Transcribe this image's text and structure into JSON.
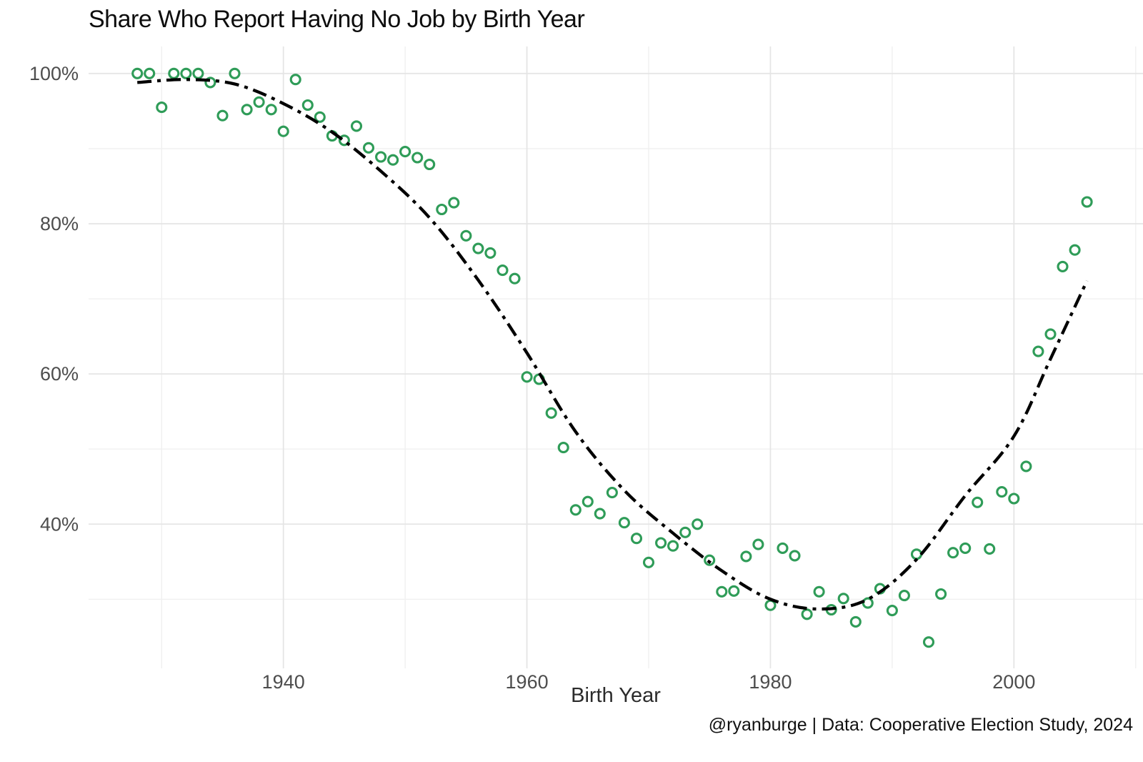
{
  "chart_data": {
    "type": "scatter",
    "title": "Share Who Report Having No Job by Birth Year",
    "xlabel": "Birth Year",
    "ylabel": "",
    "caption": "@ryanburge | Data: Cooperative Election Study, 2024",
    "legend": "none",
    "grid": "on",
    "xlim": [
      1924.0,
      2010.6
    ],
    "ylim": [
      20.8,
      103.6
    ],
    "x_ticks": [
      1940,
      1960,
      1980,
      2000
    ],
    "x_tick_labels": [
      "1940",
      "1960",
      "1980",
      "2000"
    ],
    "x_minor_ticks": [
      1930,
      1950,
      1970,
      1990,
      2010
    ],
    "y_ticks": [
      40,
      60,
      80,
      100
    ],
    "y_tick_labels": [
      "40%",
      "60%",
      "80%",
      "100%"
    ],
    "y_minor_ticks": [
      30,
      50,
      70,
      90
    ],
    "series": [
      {
        "name": "share-no-job",
        "marker": "open-circle",
        "x": [
          1928,
          1929,
          1930,
          1931,
          1932,
          1933,
          1934,
          1935,
          1936,
          1937,
          1938,
          1939,
          1940,
          1941,
          1942,
          1943,
          1944,
          1945,
          1946,
          1947,
          1948,
          1949,
          1950,
          1951,
          1952,
          1953,
          1954,
          1955,
          1956,
          1957,
          1958,
          1959,
          1960,
          1961,
          1962,
          1963,
          1964,
          1965,
          1966,
          1967,
          1968,
          1969,
          1970,
          1971,
          1972,
          1973,
          1974,
          1975,
          1976,
          1977,
          1978,
          1979,
          1980,
          1981,
          1982,
          1983,
          1984,
          1985,
          1986,
          1987,
          1988,
          1989,
          1990,
          1991,
          1992,
          1993,
          1994,
          1995,
          1996,
          1997,
          1998,
          1999,
          2000,
          2001,
          2002,
          2003,
          2004,
          2005,
          2006
        ],
        "y": [
          100,
          100,
          95.5,
          100,
          100,
          100,
          98.8,
          94.4,
          100,
          95.2,
          96.2,
          95.2,
          92.3,
          99.2,
          95.8,
          94.2,
          91.7,
          91.1,
          93.0,
          90.1,
          88.9,
          88.5,
          89.6,
          88.8,
          87.9,
          81.9,
          82.8,
          78.4,
          76.7,
          76.1,
          73.8,
          72.7,
          59.6,
          59.3,
          54.8,
          50.2,
          41.9,
          43.0,
          41.4,
          44.2,
          40.2,
          38.1,
          34.9,
          37.5,
          37.1,
          38.9,
          40.0,
          35.2,
          31.0,
          31.1,
          35.7,
          37.3,
          29.2,
          36.8,
          35.8,
          28.0,
          31.0,
          28.6,
          30.1,
          27.0,
          29.5,
          31.4,
          28.5,
          30.5,
          36.0,
          24.3,
          30.7,
          36.2,
          36.8,
          42.9,
          36.7,
          44.3,
          43.4,
          47.7,
          63.0,
          65.3,
          74.3,
          76.5,
          82.9
        ]
      }
    ],
    "trend": {
      "name": "smoothed-trend",
      "style": "dashdot",
      "x": [
        1928,
        1932,
        1936,
        1940,
        1944,
        1948,
        1952,
        1956,
        1960,
        1964,
        1968,
        1972,
        1976,
        1980,
        1984,
        1988,
        1992,
        1996,
        2000,
        2003,
        2006
      ],
      "y": [
        98.8,
        99.2,
        98.6,
        96.0,
        92.2,
        87.0,
        80.8,
        72.5,
        62.8,
        52.3,
        44.5,
        38.8,
        33.8,
        30.0,
        28.7,
        30.0,
        35.3,
        43.8,
        51.7,
        62.0,
        72.4
      ]
    },
    "colors": {
      "point_stroke": "#2f9c58",
      "point_fill": "#ffffff",
      "trend_line": "#000000",
      "grid_major": "#e5e5e5",
      "grid_minor": "#f0f0f0",
      "axis_text": "#4d4d4d",
      "title_text": "#0d0d0d"
    }
  }
}
